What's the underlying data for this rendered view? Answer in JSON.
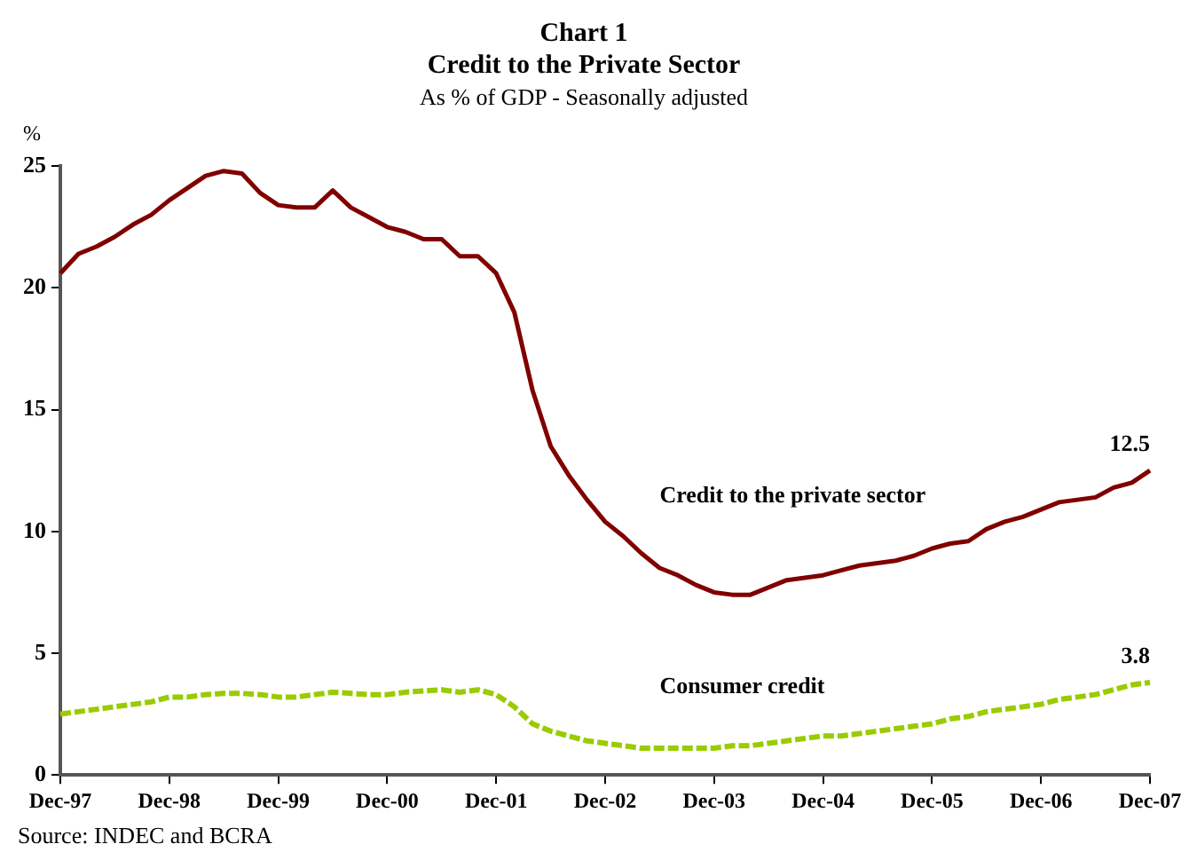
{
  "chart_data": {
    "type": "line",
    "title": "Chart 1\nCredit to the Private Sector",
    "subtitle": "As % of GDP - Seasonally adjusted",
    "ylabel": "%",
    "annotations": [
      "Source: INDEC and BCRA"
    ],
    "categories": [
      "Dec-97",
      null,
      null,
      null,
      null,
      null,
      "Dec-98",
      null,
      null,
      null,
      null,
      null,
      "Dec-99",
      null,
      null,
      null,
      null,
      null,
      "Dec-00",
      null,
      null,
      null,
      null,
      null,
      "Dec-01",
      null,
      null,
      null,
      null,
      null,
      "Dec-02",
      null,
      null,
      null,
      null,
      null,
      "Dec-03",
      null,
      null,
      null,
      null,
      null,
      "Dec-04",
      null,
      null,
      null,
      null,
      null,
      "Dec-05",
      null,
      null,
      null,
      null,
      null,
      "Dec-06",
      null,
      null,
      null,
      null,
      null,
      "Dec-07"
    ],
    "series": [
      {
        "name": "Credit to the private sector",
        "color": "#800000",
        "line_style": "solid",
        "values": [
          20.6,
          21.4,
          21.7,
          22.1,
          22.6,
          23.0,
          23.6,
          24.1,
          24.6,
          24.8,
          24.7,
          23.9,
          23.4,
          23.3,
          23.3,
          24.0,
          23.3,
          22.9,
          22.5,
          22.3,
          22.0,
          22.0,
          21.3,
          21.3,
          20.6,
          19.0,
          15.8,
          13.5,
          12.3,
          11.3,
          10.4,
          9.8,
          9.1,
          8.5,
          8.2,
          7.8,
          7.5,
          7.4,
          7.4,
          7.7,
          8.0,
          8.1,
          8.2,
          8.4,
          8.6,
          8.7,
          8.8,
          9.0,
          9.3,
          9.5,
          9.6,
          10.1,
          10.4,
          10.6,
          10.9,
          11.2,
          11.3,
          11.4,
          11.8,
          12.0,
          12.5
        ],
        "value_labels": [
          null,
          null,
          null,
          null,
          null,
          null,
          null,
          null,
          null,
          null,
          null,
          null,
          null,
          null,
          null,
          null,
          null,
          null,
          null,
          null,
          null,
          null,
          null,
          null,
          null,
          null,
          null,
          null,
          null,
          null,
          null,
          null,
          null,
          null,
          null,
          null,
          null,
          null,
          null,
          null,
          null,
          null,
          null,
          null,
          null,
          null,
          null,
          null,
          null,
          null,
          null,
          null,
          null,
          null,
          null,
          null,
          null,
          null,
          null,
          null,
          "12.5"
        ]
      },
      {
        "name": "Consumer credit",
        "color": "#99cc00",
        "line_style": "dashed",
        "values": [
          2.5,
          2.6,
          2.7,
          2.8,
          2.9,
          3.0,
          3.2,
          3.2,
          3.3,
          3.35,
          3.35,
          3.3,
          3.2,
          3.2,
          3.3,
          3.4,
          3.35,
          3.3,
          3.3,
          3.4,
          3.45,
          3.5,
          3.4,
          3.5,
          3.3,
          2.8,
          2.1,
          1.8,
          1.6,
          1.4,
          1.3,
          1.2,
          1.1,
          1.1,
          1.1,
          1.1,
          1.1,
          1.2,
          1.2,
          1.3,
          1.4,
          1.5,
          1.6,
          1.6,
          1.7,
          1.8,
          1.9,
          2.0,
          2.1,
          2.3,
          2.4,
          2.6,
          2.7,
          2.8,
          2.9,
          3.1,
          3.2,
          3.3,
          3.5,
          3.7,
          3.8
        ],
        "value_labels": [
          null,
          null,
          null,
          null,
          null,
          null,
          null,
          null,
          null,
          null,
          null,
          null,
          null,
          null,
          null,
          null,
          null,
          null,
          null,
          null,
          null,
          null,
          null,
          null,
          null,
          null,
          null,
          null,
          null,
          null,
          null,
          null,
          null,
          null,
          null,
          null,
          null,
          null,
          null,
          null,
          null,
          null,
          null,
          null,
          null,
          null,
          null,
          null,
          null,
          null,
          null,
          null,
          null,
          null,
          null,
          null,
          null,
          null,
          null,
          null,
          "3.8"
        ]
      }
    ],
    "ylim": [
      0,
      25
    ],
    "yticks": [
      0,
      5,
      10,
      15,
      20,
      25
    ],
    "grid": false,
    "legend": false,
    "marker": "none"
  }
}
